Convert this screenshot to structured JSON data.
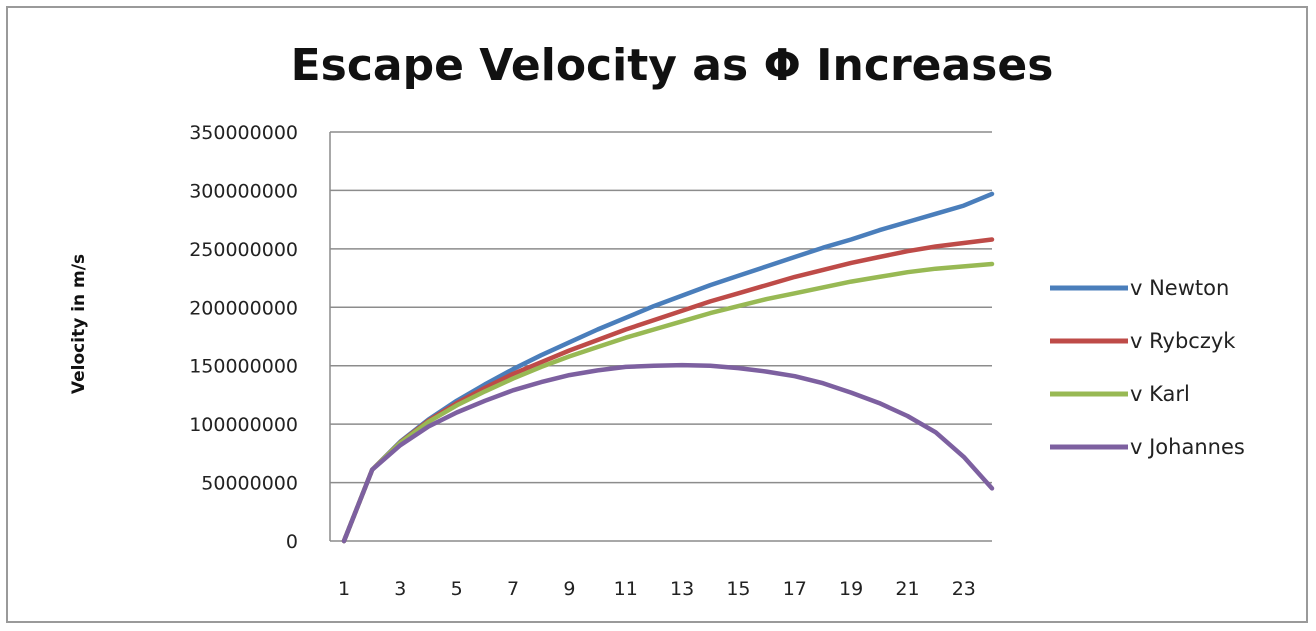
{
  "chart_data": {
    "type": "line",
    "title": "Escape Velocity as Φ Increases",
    "xlabel": "",
    "ylabel": "Velocity in m/s",
    "x": [
      1,
      2,
      3,
      4,
      5,
      6,
      7,
      8,
      9,
      10,
      11,
      12,
      13,
      14,
      15,
      16,
      17,
      18,
      19,
      20,
      21,
      22,
      23,
      24
    ],
    "x_tick_labels": [
      "1",
      "3",
      "5",
      "7",
      "9",
      "11",
      "13",
      "15",
      "17",
      "19",
      "21",
      "23"
    ],
    "ylim": [
      0,
      350000000
    ],
    "y_ticks": [
      0,
      50000000,
      100000000,
      150000000,
      200000000,
      250000000,
      300000000,
      350000000
    ],
    "y_tick_labels": [
      "0",
      "50000000",
      "100000000",
      "150000000",
      "200000000",
      "250000000",
      "300000000",
      "350000000"
    ],
    "grid": "horizontal",
    "legend_position": "right",
    "series": [
      {
        "name": "v Newton",
        "color": "#4a7ebb",
        "values": [
          0,
          61000000,
          85000000,
          104000000,
          120000000,
          134000000,
          147000000,
          159000000,
          170000000,
          181000000,
          191000000,
          201000000,
          210000000,
          219000000,
          227000000,
          235000000,
          243000000,
          251000000,
          258000000,
          266000000,
          273000000,
          280000000,
          287000000,
          297000000
        ]
      },
      {
        "name": "v Rybczyk",
        "color": "#be4b48",
        "values": [
          0,
          61000000,
          84500000,
          103000000,
          118000000,
          131000000,
          143000000,
          153000000,
          163000000,
          172000000,
          181000000,
          189000000,
          197000000,
          205000000,
          212000000,
          219000000,
          226000000,
          232000000,
          238000000,
          243000000,
          248000000,
          252000000,
          255000000,
          258000000
        ]
      },
      {
        "name": "v Karl",
        "color": "#98b954",
        "values": [
          0,
          61000000,
          84000000,
          102000000,
          116000000,
          128000000,
          139000000,
          149000000,
          158000000,
          166000000,
          174000000,
          181000000,
          188000000,
          195000000,
          201000000,
          207000000,
          212000000,
          217000000,
          222000000,
          226000000,
          230000000,
          233000000,
          235000000,
          237000000
        ]
      },
      {
        "name": "v Johannes",
        "color": "#7d60a0",
        "values": [
          0,
          61000000,
          82000000,
          98000000,
          110000000,
          120000000,
          129000000,
          136000000,
          142000000,
          146000000,
          149000000,
          150000000,
          150500000,
          150000000,
          148000000,
          145000000,
          141000000,
          135000000,
          127000000,
          118000000,
          107000000,
          93000000,
          72000000,
          45000000
        ]
      }
    ]
  }
}
